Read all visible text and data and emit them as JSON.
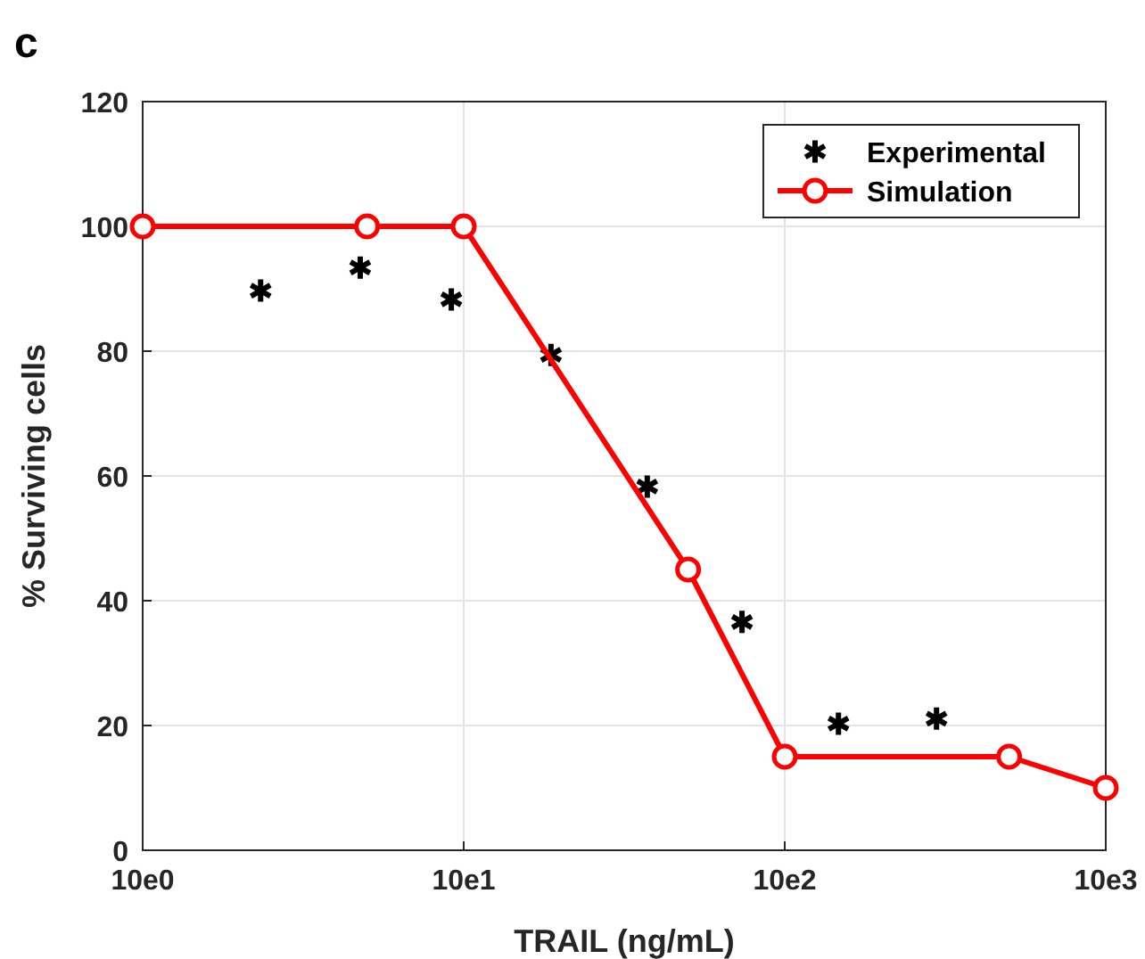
{
  "chart_data": {
    "type": "line",
    "title": "c",
    "xlabel": "TRAIL (ng/mL)",
    "ylabel": "% Surviving cells",
    "log": "x",
    "xlim": [
      10,
      10000
    ],
    "xticks": [
      {
        "value": 10,
        "label": "10e0"
      },
      {
        "value": 100,
        "label": "10e1"
      },
      {
        "value": 1000,
        "label": "10e2"
      },
      {
        "value": 10000,
        "label": "10e3"
      }
    ],
    "ylim": [
      0,
      120
    ],
    "yticks": [
      0,
      20,
      40,
      60,
      80,
      100,
      120
    ],
    "grid": true,
    "legend": "top right",
    "series": [
      {
        "name": "Experimental",
        "type": "scatter",
        "marker": "cross",
        "color": "#000000",
        "x": [
          23.3,
          47.6,
          91.5,
          187,
          373,
          736,
          1470,
          2970
        ],
        "values": [
          89.7,
          93.4,
          88.3,
          79.4,
          58.3,
          36.6,
          20.3,
          21.1
        ]
      },
      {
        "name": "Simulation",
        "type": "line",
        "marker": "circle",
        "line_style": "solid",
        "color": "#ff0000",
        "x": [
          10,
          50,
          100,
          500,
          1000,
          5000,
          10000
        ],
        "values": [
          100,
          100,
          100,
          45,
          15,
          15,
          10
        ]
      }
    ]
  }
}
